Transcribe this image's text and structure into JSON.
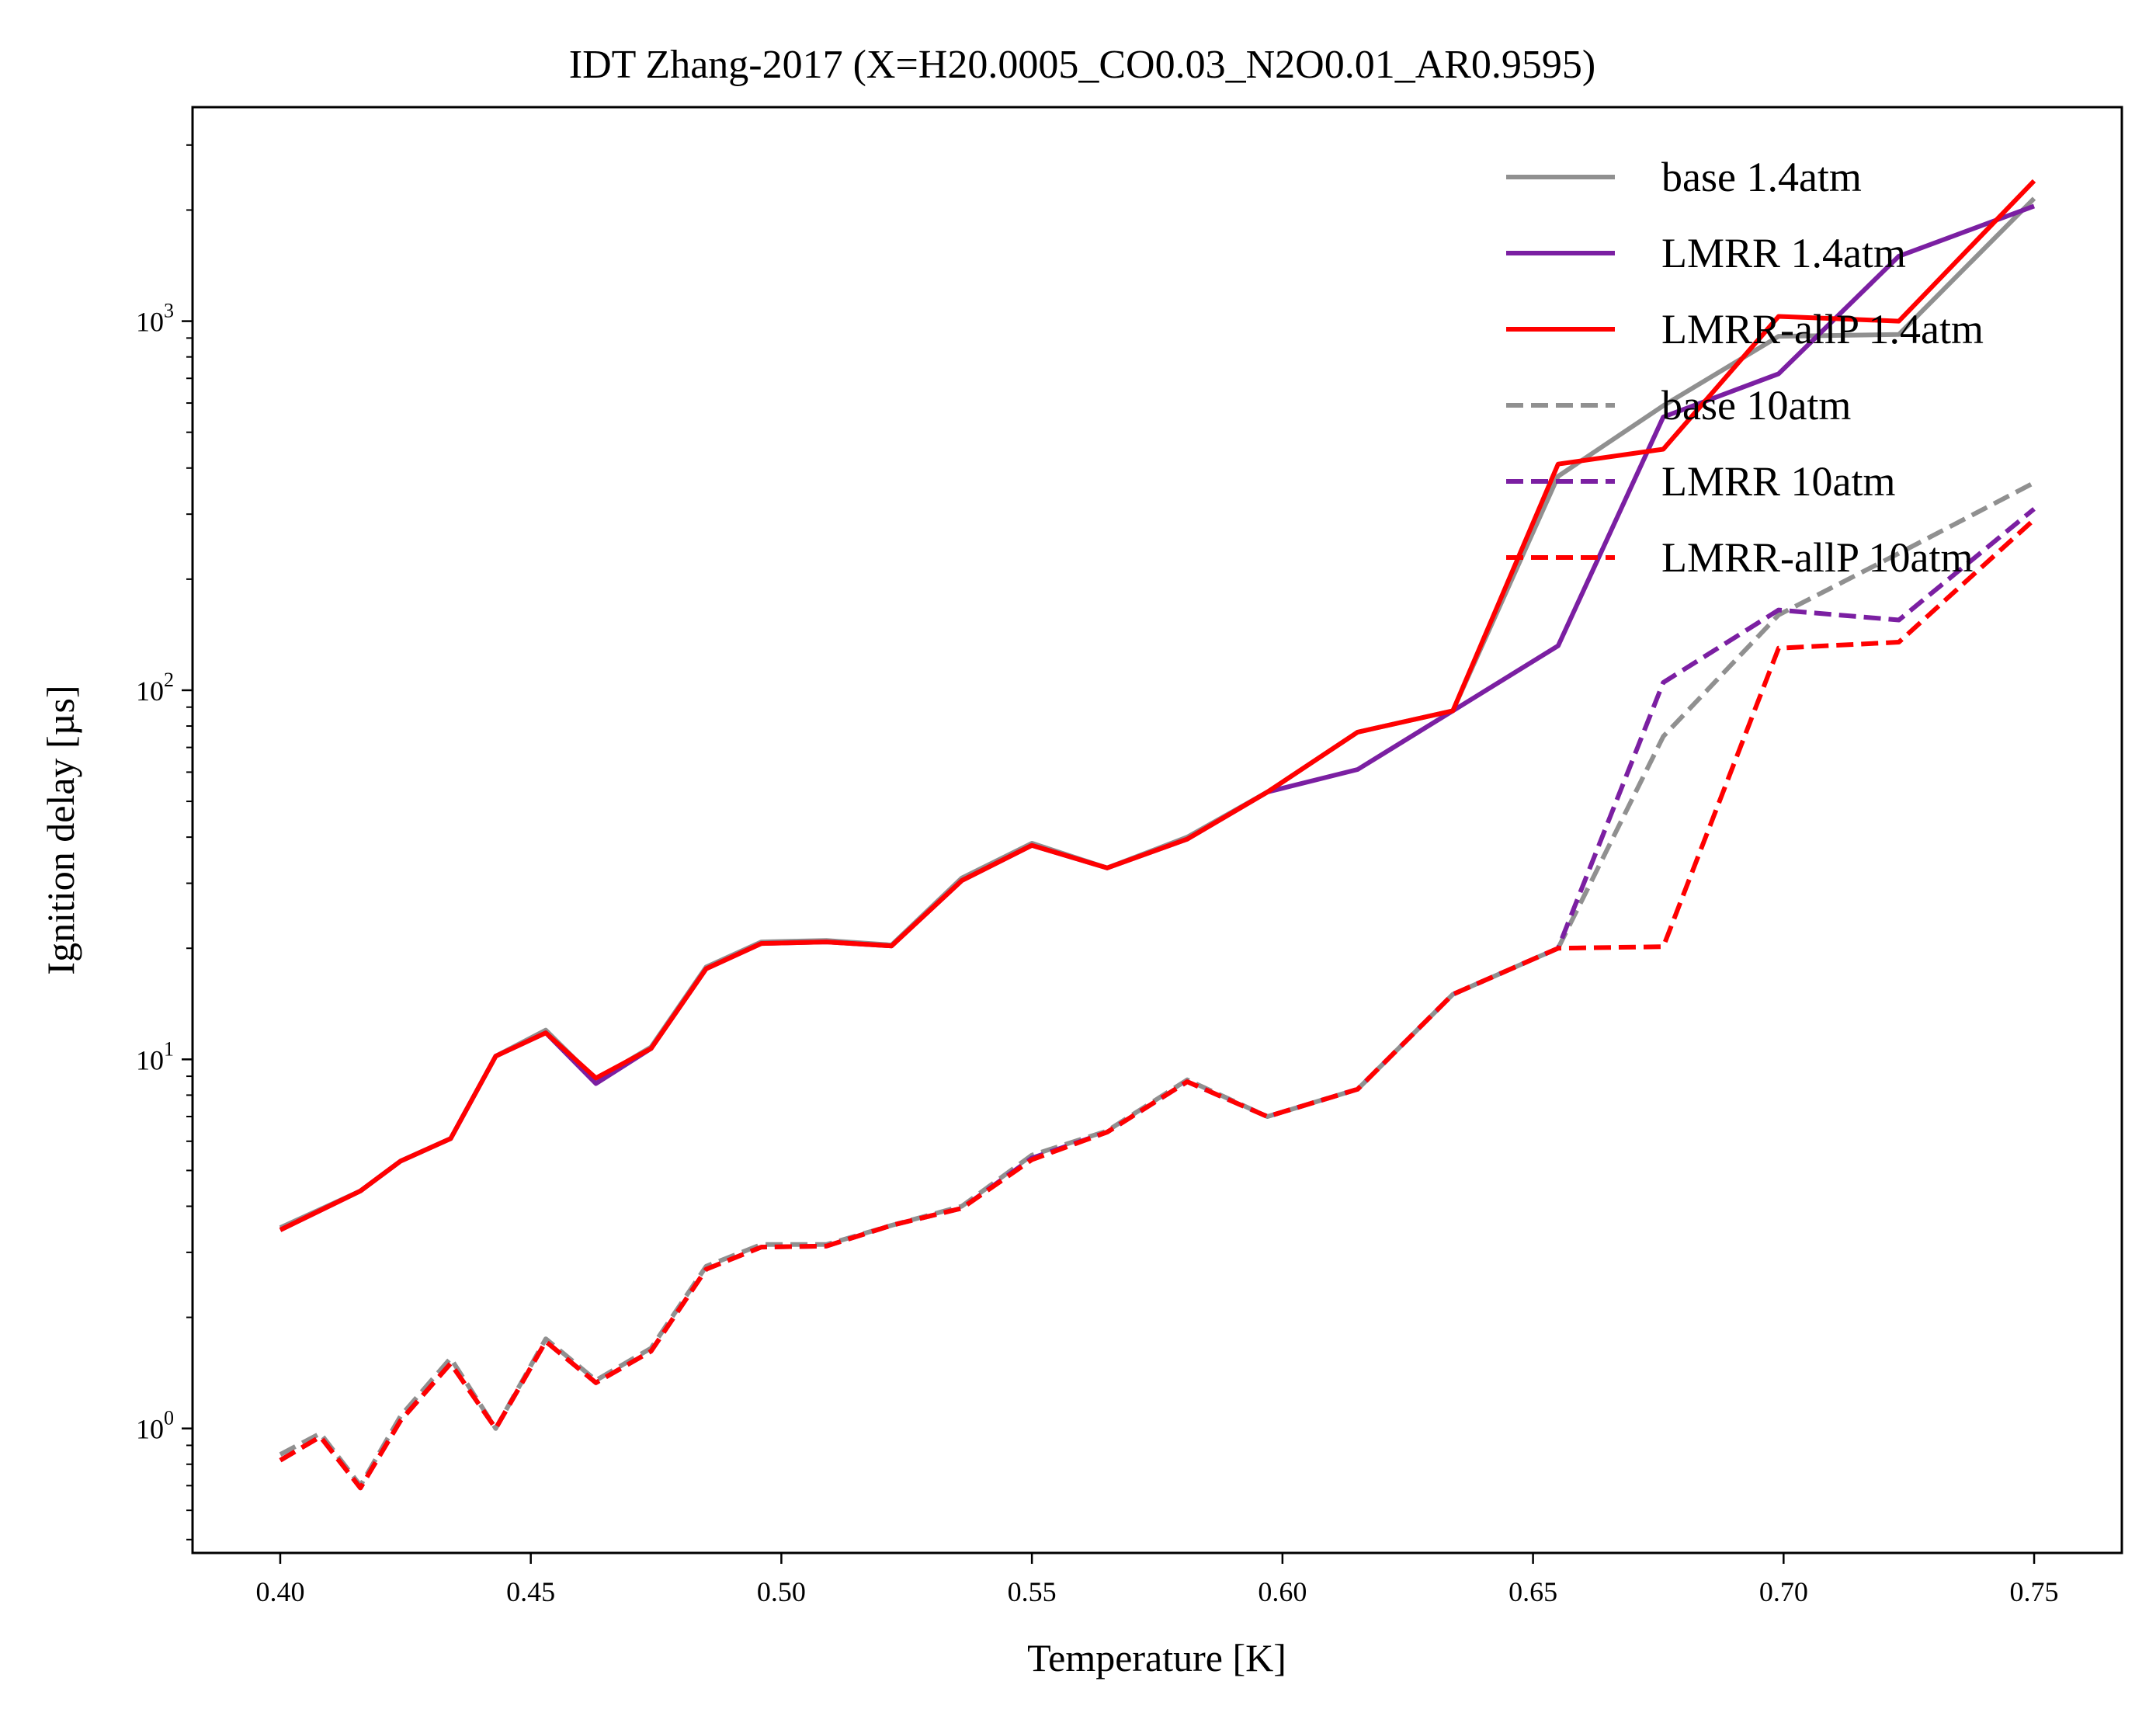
{
  "chart_data": {
    "type": "line",
    "title": "IDT Zhang-2017 (X=H20.0005_CO0.03_N2O0.01_AR0.9595)",
    "xlabel": "Temperature [K]",
    "ylabel": "Ignition delay [µs]",
    "xlim": [
      0.3825,
      0.7675
    ],
    "ylim": [
      0.46,
      3800
    ],
    "yscale": "log",
    "xticks": [
      0.4,
      0.45,
      0.5,
      0.55,
      0.6,
      0.65,
      0.7,
      0.75
    ],
    "xtick_labels": [
      "0.40",
      "0.45",
      "0.50",
      "0.55",
      "0.60",
      "0.65",
      "0.70",
      "0.75"
    ],
    "yticks": [
      {
        "value": 1,
        "base": "10",
        "exp": "0"
      },
      {
        "value": 10,
        "base": "10",
        "exp": "1"
      },
      {
        "value": 100,
        "base": "10",
        "exp": "2"
      },
      {
        "value": 1000,
        "base": "10",
        "exp": "3"
      }
    ],
    "grid": false,
    "legend_position": "top-right",
    "series": [
      {
        "name": "base 1.4atm",
        "color": "#909090",
        "dash": "solid",
        "x": [
          0.4,
          0.416,
          0.424,
          0.434,
          0.443,
          0.453,
          0.463,
          0.474,
          0.485,
          0.496,
          0.509,
          0.522,
          0.536,
          0.55,
          0.565,
          0.581,
          0.597,
          0.615,
          0.634,
          0.655,
          0.676,
          0.699,
          0.723,
          0.75
        ],
        "y": [
          3.5,
          4.4,
          5.3,
          6.1,
          10.2,
          12.0,
          8.8,
          10.8,
          17.8,
          20.8,
          21.0,
          20.4,
          31.0,
          38.5,
          33.0,
          40.0,
          53.0,
          77.0,
          88.0,
          380,
          590,
          910,
          920,
          2150
        ]
      },
      {
        "name": "LMRR 1.4atm",
        "color": "#7b1fa2",
        "dash": "solid",
        "x": [
          0.4,
          0.416,
          0.424,
          0.434,
          0.443,
          0.453,
          0.463,
          0.474,
          0.485,
          0.496,
          0.509,
          0.522,
          0.536,
          0.55,
          0.565,
          0.581,
          0.597,
          0.615,
          0.634,
          0.655,
          0.676,
          0.699,
          0.723,
          0.75
        ],
        "y": [
          3.45,
          4.4,
          5.3,
          6.1,
          10.2,
          11.8,
          8.6,
          10.7,
          17.6,
          20.6,
          20.8,
          20.3,
          30.5,
          38.0,
          33.0,
          39.5,
          53.0,
          61.0,
          88.0,
          132,
          550,
          720,
          1500,
          2050
        ]
      },
      {
        "name": "LMRR-allP 1.4atm",
        "color": "#ff0000",
        "dash": "solid",
        "x": [
          0.4,
          0.416,
          0.424,
          0.434,
          0.443,
          0.453,
          0.463,
          0.474,
          0.485,
          0.496,
          0.509,
          0.522,
          0.536,
          0.55,
          0.565,
          0.581,
          0.597,
          0.615,
          0.634,
          0.655,
          0.676,
          0.699,
          0.723,
          0.75
        ],
        "y": [
          3.45,
          4.4,
          5.3,
          6.1,
          10.2,
          11.8,
          8.9,
          10.7,
          17.6,
          20.6,
          20.8,
          20.3,
          30.5,
          38.0,
          33.0,
          39.5,
          53.0,
          77.0,
          88.0,
          410,
          450,
          1030,
          1000,
          2400
        ]
      },
      {
        "name": "base 10atm",
        "color": "#909090",
        "dash": "dashed",
        "x": [
          0.4,
          0.408,
          0.416,
          0.424,
          0.434,
          0.443,
          0.453,
          0.463,
          0.474,
          0.485,
          0.496,
          0.509,
          0.522,
          0.536,
          0.55,
          0.565,
          0.581,
          0.597,
          0.615,
          0.634,
          0.655,
          0.676,
          0.699,
          0.723,
          0.75
        ],
        "y": [
          0.85,
          0.97,
          0.7,
          1.08,
          1.55,
          1.0,
          1.75,
          1.35,
          1.65,
          2.75,
          3.15,
          3.15,
          3.55,
          4.0,
          5.5,
          6.4,
          8.8,
          7.0,
          8.3,
          15.0,
          20.0,
          75.0,
          160,
          235,
          365
        ]
      },
      {
        "name": "LMRR 10atm",
        "color": "#7b1fa2",
        "dash": "dashed",
        "x": [
          0.4,
          0.408,
          0.416,
          0.424,
          0.434,
          0.443,
          0.453,
          0.463,
          0.474,
          0.485,
          0.496,
          0.509,
          0.522,
          0.536,
          0.55,
          0.565,
          0.581,
          0.597,
          0.615,
          0.634,
          0.655,
          0.676,
          0.699,
          0.723,
          0.75
        ],
        "y": [
          0.82,
          0.95,
          0.69,
          1.05,
          1.5,
          1.0,
          1.72,
          1.33,
          1.62,
          2.7,
          3.1,
          3.12,
          3.55,
          3.95,
          5.4,
          6.35,
          8.7,
          7.0,
          8.3,
          15.0,
          20.0,
          105,
          165,
          155,
          310
        ]
      },
      {
        "name": "LMRR-allP 10atm",
        "color": "#ff0000",
        "dash": "dashed",
        "x": [
          0.4,
          0.408,
          0.416,
          0.424,
          0.434,
          0.443,
          0.453,
          0.463,
          0.474,
          0.485,
          0.496,
          0.509,
          0.522,
          0.536,
          0.55,
          0.565,
          0.581,
          0.597,
          0.615,
          0.634,
          0.655,
          0.676,
          0.699,
          0.723,
          0.75
        ],
        "y": [
          0.82,
          0.95,
          0.69,
          1.05,
          1.5,
          1.0,
          1.72,
          1.33,
          1.62,
          2.7,
          3.1,
          3.12,
          3.55,
          3.95,
          5.35,
          6.35,
          8.7,
          7.0,
          8.3,
          15.0,
          20.0,
          20.2,
          130,
          135,
          290
        ]
      }
    ]
  }
}
